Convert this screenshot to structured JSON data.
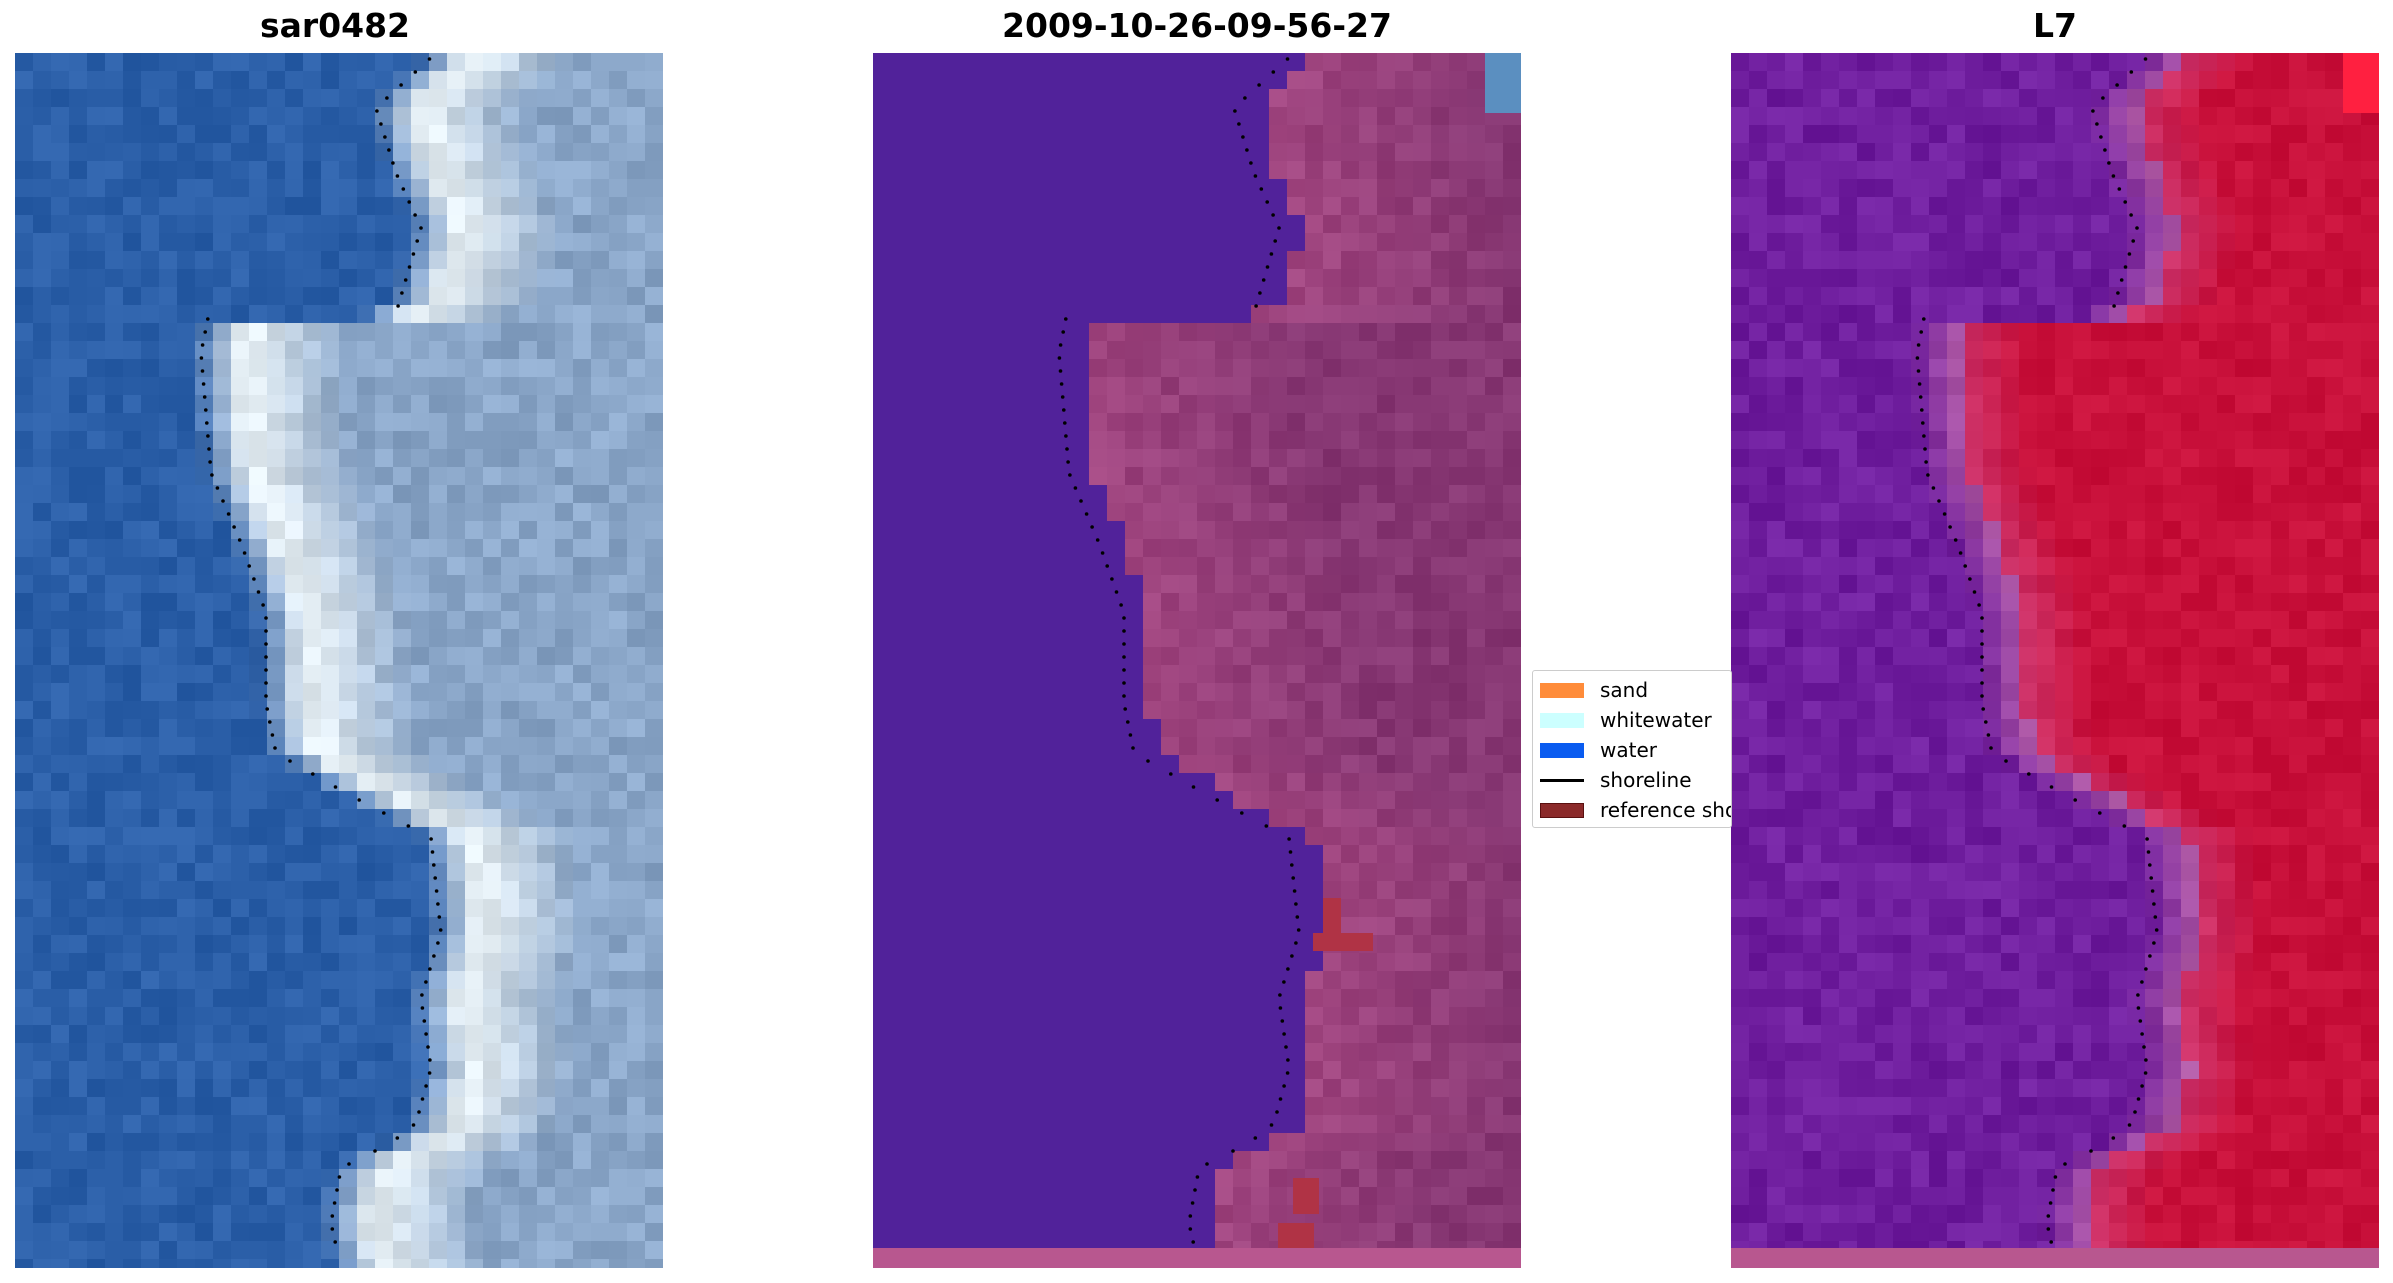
{
  "panels": [
    {
      "title": "sar0482",
      "kind": "rgb"
    },
    {
      "title": "2009-10-26-09-56-27",
      "kind": "classified"
    },
    {
      "title": "L7",
      "kind": "index"
    }
  ],
  "legend": {
    "items": [
      {
        "label": "sand",
        "color": "#ff8c3a"
      },
      {
        "label": "whitewater",
        "color": "#ccffff"
      },
      {
        "label": "water",
        "color": "#0a5cf0"
      },
      {
        "label": "shoreline",
        "color": "#000000"
      },
      {
        "label": "reference shoreline",
        "color": "#8b2a2a"
      }
    ]
  },
  "colors": {
    "water_rgb": "#2b5fa8",
    "land_rgb": "#8aa6c8",
    "water_class": "#51229a",
    "land_class": "#a0457f",
    "ref_class": "#b03345",
    "water_index": "#6f1e9e",
    "land_index": "#c8103a"
  }
}
